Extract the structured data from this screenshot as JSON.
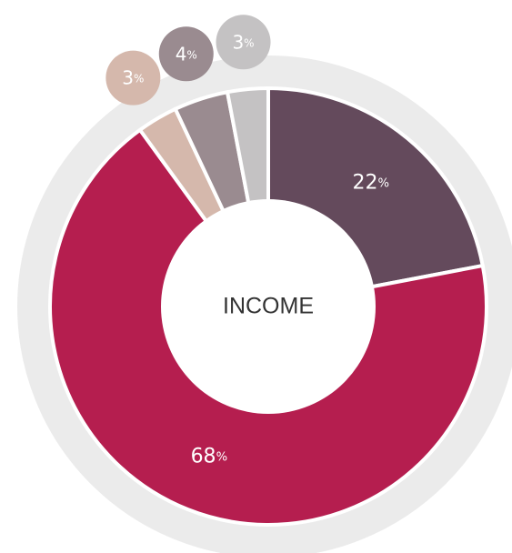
{
  "chart_data": {
    "type": "donut",
    "title": "INCOME",
    "categories": [
      null,
      null,
      null,
      null,
      null
    ],
    "values": [
      22,
      68,
      3,
      4,
      3
    ],
    "value_labels": [
      "22%",
      "68%",
      "3%",
      "4%",
      "3%"
    ],
    "colors": [
      "#644a5c",
      "#b51e4f",
      "#d5b8ac",
      "#9a8b90",
      "#c4c2c3"
    ]
  }
}
